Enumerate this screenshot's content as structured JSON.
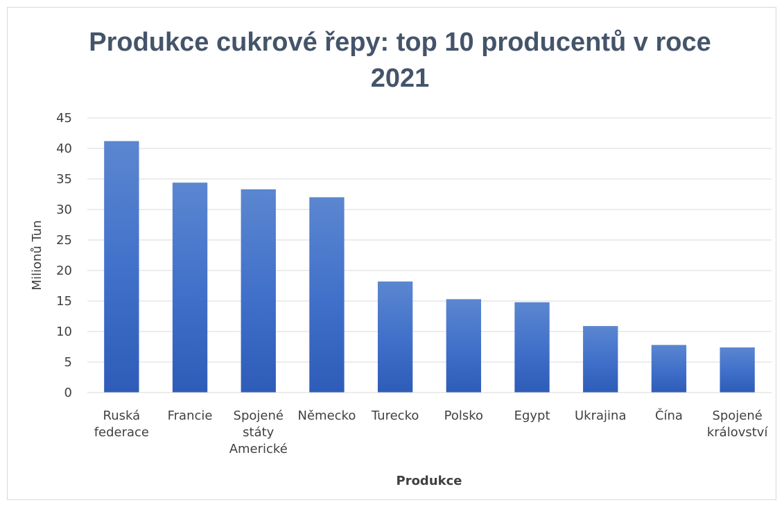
{
  "chart_data": {
    "type": "bar",
    "title": "Produkce cukrové řepy: top 10 producentů v roce 2021",
    "title_lines": [
      "Produkce cukrové řepy: top 10 producentů v roce",
      "2021"
    ],
    "xlabel": "Produkce",
    "ylabel": "Milionů Tun",
    "ylim": [
      0,
      45
    ],
    "yticks": [
      0,
      5,
      10,
      15,
      20,
      25,
      30,
      35,
      40,
      45
    ],
    "grid": true,
    "legend": "none",
    "bar_color": "#4472c4",
    "categories": [
      [
        "Ruská",
        "federace"
      ],
      [
        "Francie"
      ],
      [
        "Spojené",
        "státy",
        "Americké"
      ],
      [
        "Německo"
      ],
      [
        "Turecko"
      ],
      [
        "Polsko"
      ],
      [
        "Egypt"
      ],
      [
        "Ukrajina"
      ],
      [
        "Čína"
      ],
      [
        "Spojené",
        "království"
      ]
    ],
    "values": [
      41.2,
      34.4,
      33.3,
      32.0,
      18.2,
      15.3,
      14.8,
      10.9,
      7.8,
      7.4
    ]
  }
}
